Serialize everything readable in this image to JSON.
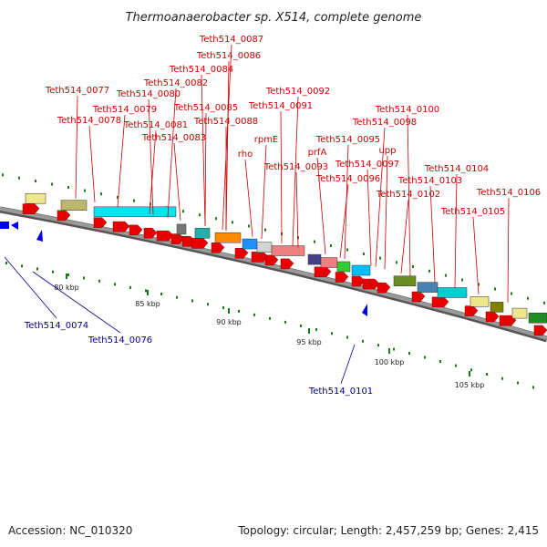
{
  "title": "Thermoanaerobacter sp. X514, complete genome",
  "footer": {
    "accession": "Accession: NC_010320",
    "summary": "Topology: circular; Length: 2,457,259 bp; Genes: 2,415"
  },
  "colors": {
    "forward_gene": "#e60000",
    "reverse_gene": "#0000ee",
    "label_red": "#cc0000",
    "label_blue": "#00008b",
    "tick": "#1a7a1a",
    "backbone": "#9a9a9a"
  },
  "top_labels": [
    "Teth514_0087",
    "Teth514_0086",
    "Teth514_0084",
    "Teth514_0082",
    "Teth514_0077",
    "Teth514_0080",
    "Teth514_0079",
    "Teth514_0085",
    "Teth514_0078",
    "Teth514_0081",
    "Teth514_0088",
    "Teth514_0083",
    "Teth514_0092",
    "Teth514_0091",
    "rho",
    "rpmE",
    "Teth514_0093",
    "prfA",
    "Teth514_0095",
    "Teth514_0100",
    "Teth514_0098",
    "upp",
    "Teth514_0097",
    "Teth514_0096",
    "Teth514_0104",
    "Teth514_0103",
    "Teth514_0102",
    "Teth514_0106",
    "Teth514_0105"
  ],
  "bottom_labels": [
    "Teth514_0074",
    "Teth514_0076",
    "Teth514_0101"
  ],
  "scale_labels": [
    "80 kbp",
    "85 kbp",
    "90 kbp",
    "95 kbp",
    "100 kbp",
    "105 kbp"
  ]
}
